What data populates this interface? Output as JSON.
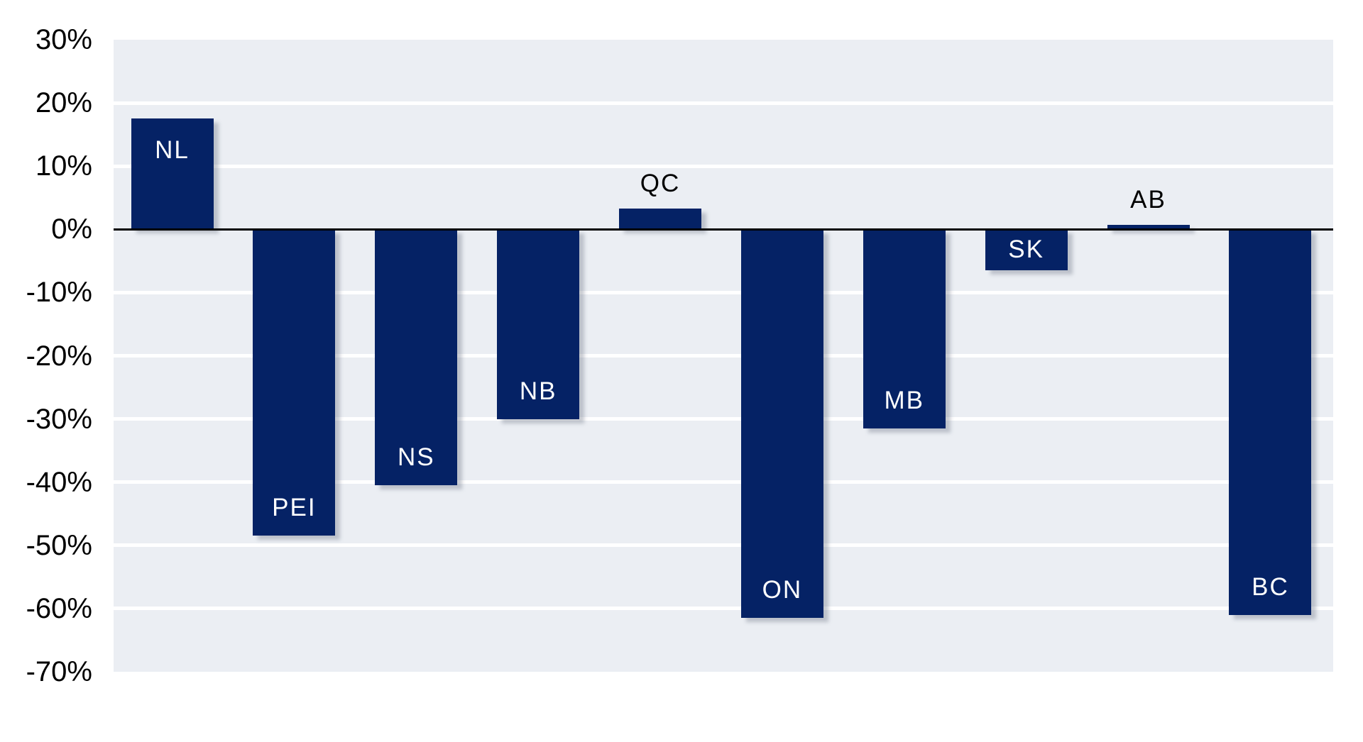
{
  "chart_data": {
    "type": "bar",
    "categories": [
      "NL",
      "PEI",
      "NS",
      "NB",
      "QC",
      "ON",
      "MB",
      "SK",
      "AB",
      "BC"
    ],
    "values": [
      17.5,
      -48.5,
      -40.5,
      -30,
      3.3,
      -61.5,
      -31.5,
      -6.5,
      0.7,
      -61
    ],
    "title": "",
    "xlabel": "",
    "ylabel": "",
    "ylim": [
      -70,
      30
    ],
    "ytick_step": 10,
    "ytick_labels": [
      "30%",
      "20%",
      "10%",
      "0%",
      "-10%",
      "-20%",
      "-30%",
      "-40%",
      "-50%",
      "-60%",
      "-70%"
    ],
    "grid": true,
    "legend": false,
    "label_modes": [
      "inside-top",
      "inside-bottom",
      "inside-bottom",
      "inside-bottom",
      "above",
      "inside-bottom",
      "inside-bottom",
      "center",
      "above",
      "inside-bottom"
    ],
    "colors": {
      "bar": "#052265",
      "plot_background": "#ebeef3",
      "gridline": "#ffffff",
      "zero_axis": "#000000",
      "label_inside": "#ffffff",
      "label_outside": "#000000",
      "tick_text": "#000000"
    }
  }
}
